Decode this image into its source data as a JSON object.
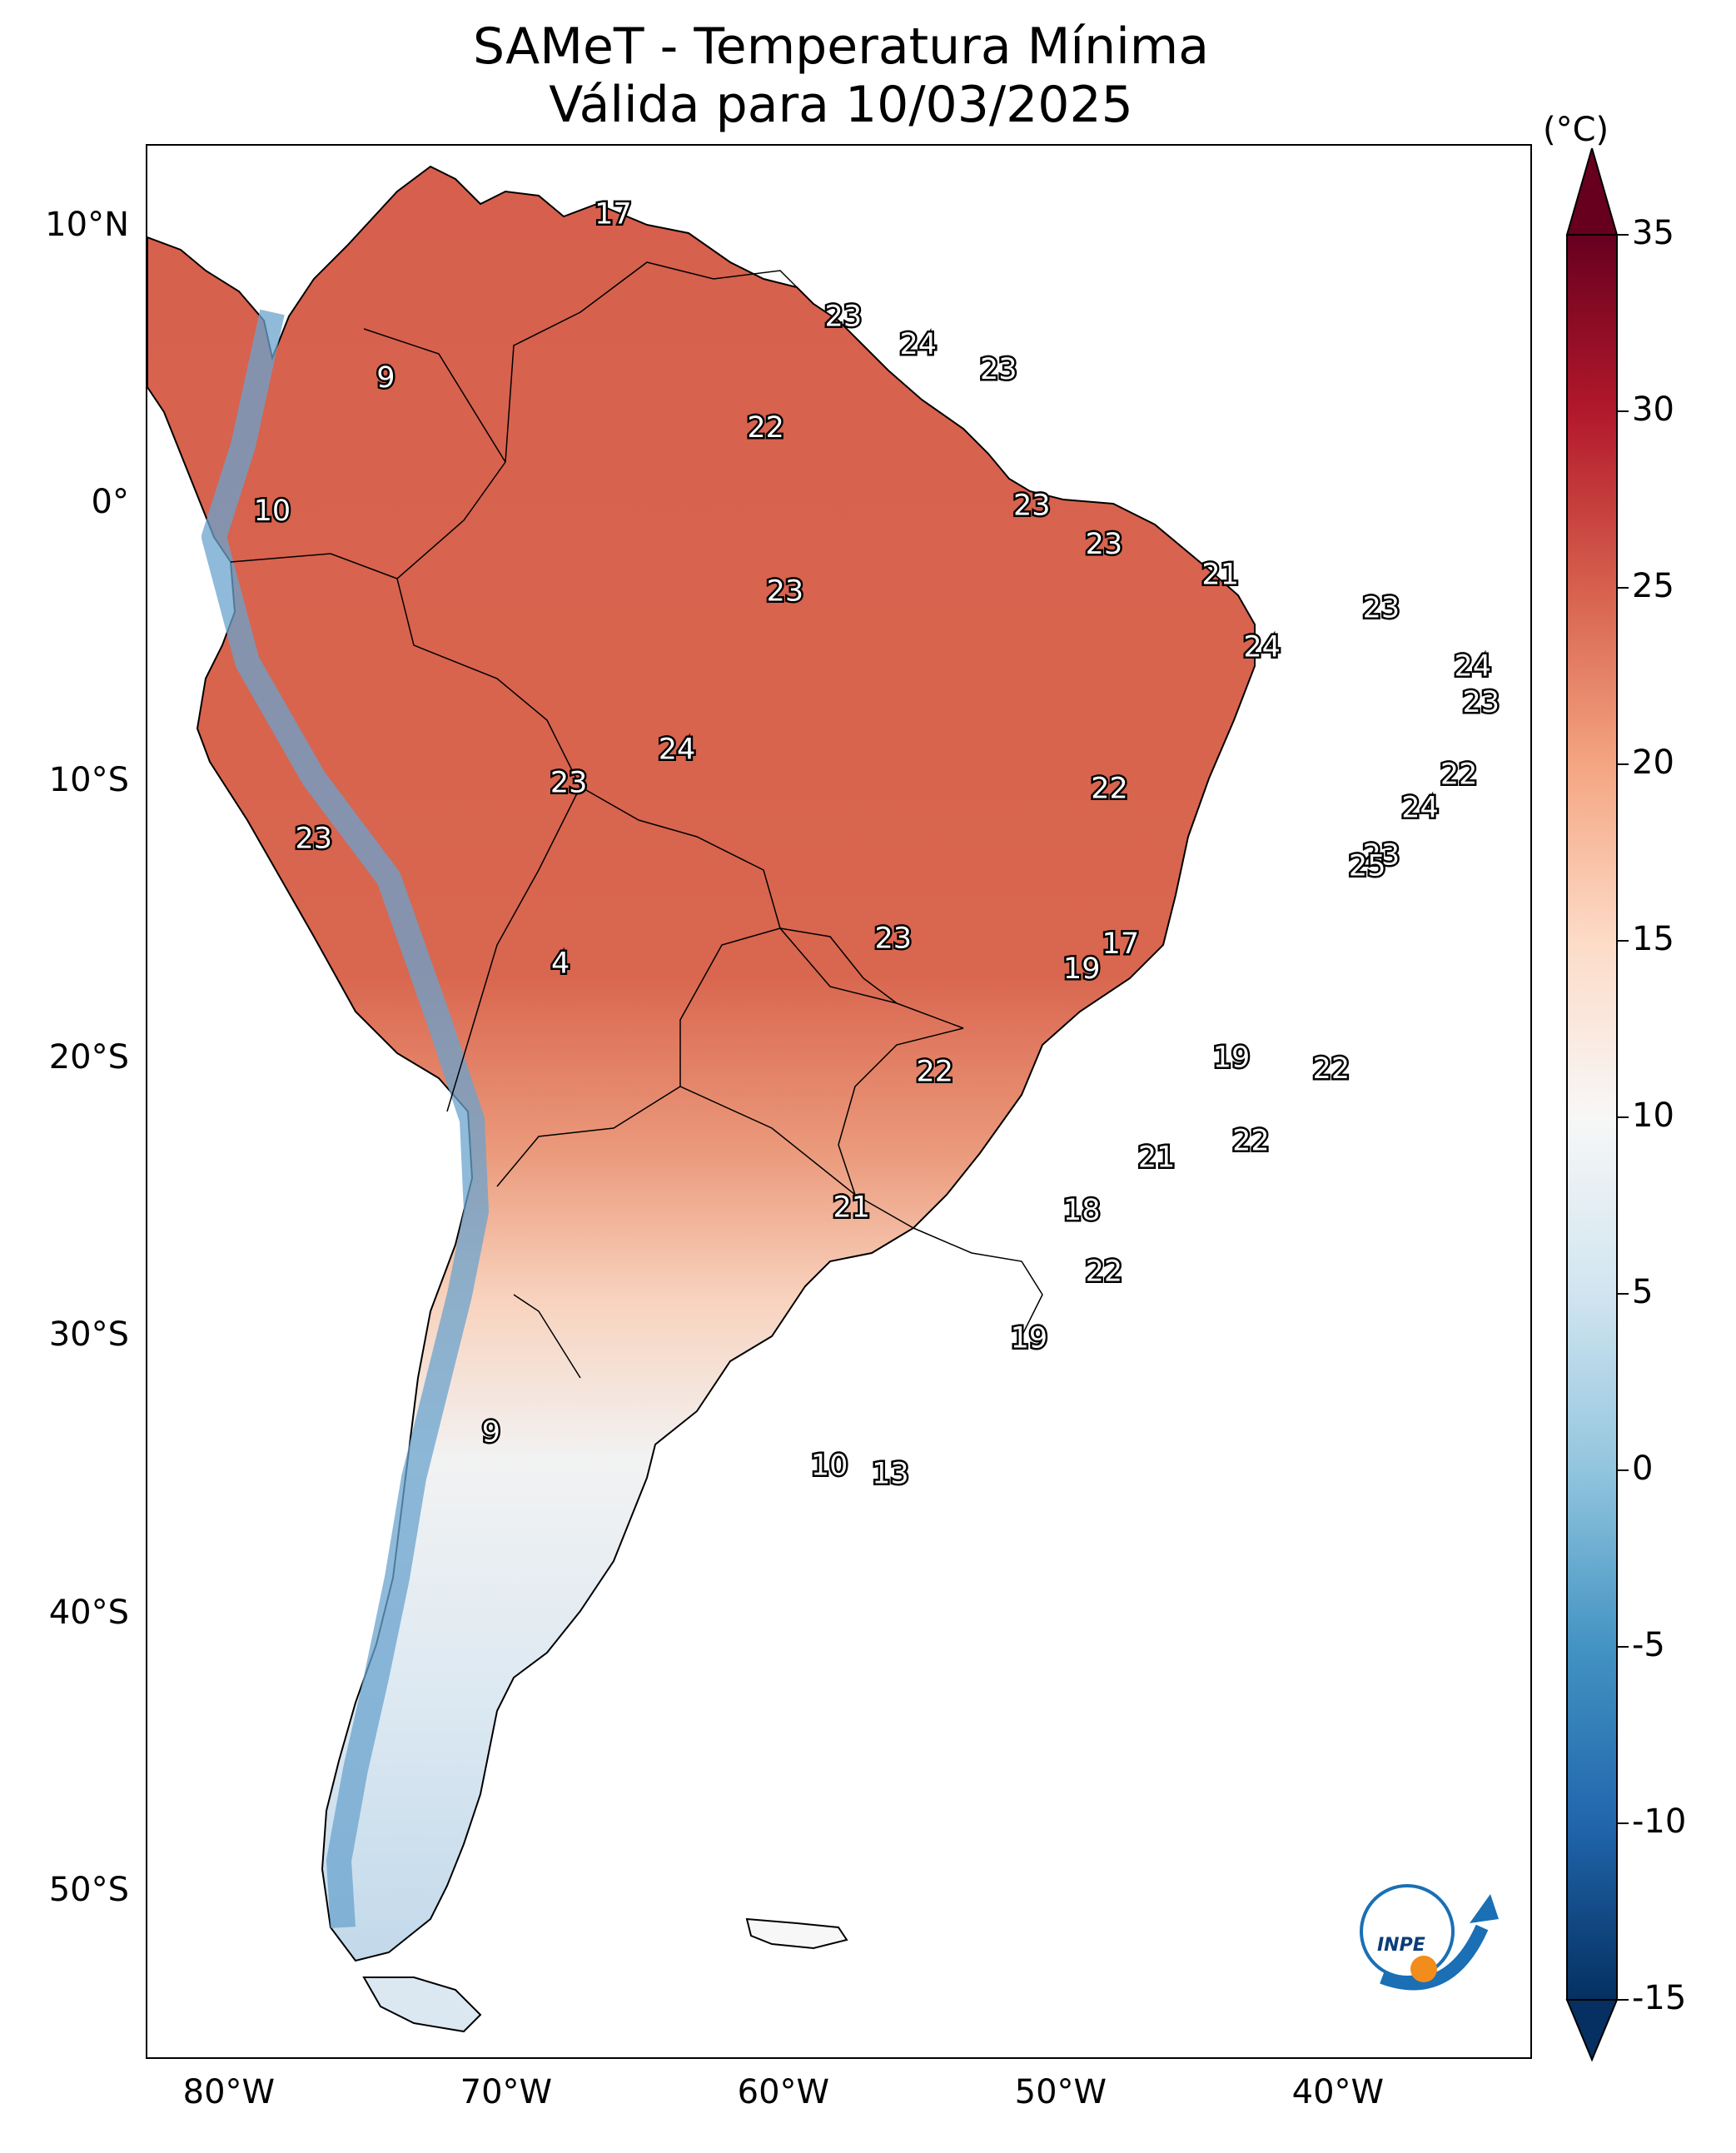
{
  "title": {
    "line1": "SAMeT - Temperatura Mínima",
    "line2": "Válida para 10/03/2025"
  },
  "map": {
    "lon_range": [
      -83,
      -33
    ],
    "lat_range": [
      -56,
      13
    ],
    "lat_ticks": [
      {
        "value": 10,
        "label": "10°N"
      },
      {
        "value": 0,
        "label": "0°"
      },
      {
        "value": -10,
        "label": "10°S"
      },
      {
        "value": -20,
        "label": "20°S"
      },
      {
        "value": -30,
        "label": "30°S"
      },
      {
        "value": -40,
        "label": "40°S"
      },
      {
        "value": -50,
        "label": "50°S"
      }
    ],
    "lon_ticks": [
      {
        "value": -80,
        "label": "80°W"
      },
      {
        "value": -70,
        "label": "70°W"
      },
      {
        "value": -60,
        "label": "60°W"
      },
      {
        "value": -50,
        "label": "50°W"
      },
      {
        "value": -40,
        "label": "40°W"
      }
    ],
    "city_values": [
      {
        "lon": -66.2,
        "lat": 10.5,
        "label": "17"
      },
      {
        "lon": -74.4,
        "lat": 4.6,
        "label": "9"
      },
      {
        "lon": -78.5,
        "lat": -0.2,
        "label": "10"
      },
      {
        "lon": -57.9,
        "lat": 6.8,
        "label": "23"
      },
      {
        "lon": -55.2,
        "lat": 5.8,
        "label": "24"
      },
      {
        "lon": -52.3,
        "lat": 4.9,
        "label": "23"
      },
      {
        "lon": -60.7,
        "lat": 2.8,
        "label": "22"
      },
      {
        "lon": -51.1,
        "lat": 0.0,
        "label": "23"
      },
      {
        "lon": -48.5,
        "lat": -1.4,
        "label": "23"
      },
      {
        "lon": -60.0,
        "lat": -3.1,
        "label": "23"
      },
      {
        "lon": -44.3,
        "lat": -2.5,
        "label": "21"
      },
      {
        "lon": -38.5,
        "lat": -3.7,
        "label": "23"
      },
      {
        "lon": -42.8,
        "lat": -5.1,
        "label": "24"
      },
      {
        "lon": -35.2,
        "lat": -5.8,
        "label": "24"
      },
      {
        "lon": -34.9,
        "lat": -7.1,
        "label": "23"
      },
      {
        "lon": -35.7,
        "lat": -9.7,
        "label": "22"
      },
      {
        "lon": -63.9,
        "lat": -8.8,
        "label": "24"
      },
      {
        "lon": -67.8,
        "lat": -10.0,
        "label": "23"
      },
      {
        "lon": -48.3,
        "lat": -10.2,
        "label": "22"
      },
      {
        "lon": -37.1,
        "lat": -10.9,
        "label": "24"
      },
      {
        "lon": -38.5,
        "lat": -12.6,
        "label": "23"
      },
      {
        "lon": -77.0,
        "lat": -12.0,
        "label": "23"
      },
      {
        "lon": -39.0,
        "lat": -13.0,
        "label": "25"
      },
      {
        "lon": -56.1,
        "lat": -15.6,
        "label": "23"
      },
      {
        "lon": -47.9,
        "lat": -15.8,
        "label": "17"
      },
      {
        "lon": -49.3,
        "lat": -16.7,
        "label": "19"
      },
      {
        "lon": -68.1,
        "lat": -16.5,
        "label": "4"
      },
      {
        "lon": -54.6,
        "lat": -20.4,
        "label": "22"
      },
      {
        "lon": -43.9,
        "lat": -19.9,
        "label": "19"
      },
      {
        "lon": -40.3,
        "lat": -20.3,
        "label": "22"
      },
      {
        "lon": -43.2,
        "lat": -22.9,
        "label": "22"
      },
      {
        "lon": -46.6,
        "lat": -23.5,
        "label": "21"
      },
      {
        "lon": -57.6,
        "lat": -25.3,
        "label": "21"
      },
      {
        "lon": -49.3,
        "lat": -25.4,
        "label": "18"
      },
      {
        "lon": -48.5,
        "lat": -27.6,
        "label": "22"
      },
      {
        "lon": -51.2,
        "lat": -30.0,
        "label": "19"
      },
      {
        "lon": -70.6,
        "lat": -33.4,
        "label": "9"
      },
      {
        "lon": -58.4,
        "lat": -34.6,
        "label": "10"
      },
      {
        "lon": -56.2,
        "lat": -34.9,
        "label": "13"
      }
    ]
  },
  "colorbar": {
    "unit": "(°C)",
    "min": -15,
    "max": 35,
    "ticks": [
      {
        "value": 35,
        "label": "35"
      },
      {
        "value": 30,
        "label": "30"
      },
      {
        "value": 25,
        "label": "25"
      },
      {
        "value": 20,
        "label": "20"
      },
      {
        "value": 15,
        "label": "15"
      },
      {
        "value": 10,
        "label": "10"
      },
      {
        "value": 5,
        "label": "5"
      },
      {
        "value": 0,
        "label": "0"
      },
      {
        "value": -5,
        "label": "-5"
      },
      {
        "value": -10,
        "label": "-10"
      },
      {
        "value": -15,
        "label": "-15"
      }
    ],
    "colors": [
      "#053061",
      "#2166ac",
      "#4393c3",
      "#92c5de",
      "#d1e5f0",
      "#f7f7f7",
      "#fddbc7",
      "#f4a582",
      "#d6604d",
      "#b2182b",
      "#67001f"
    ]
  },
  "logo": {
    "name": "inpe-logo",
    "text": "INPE"
  }
}
